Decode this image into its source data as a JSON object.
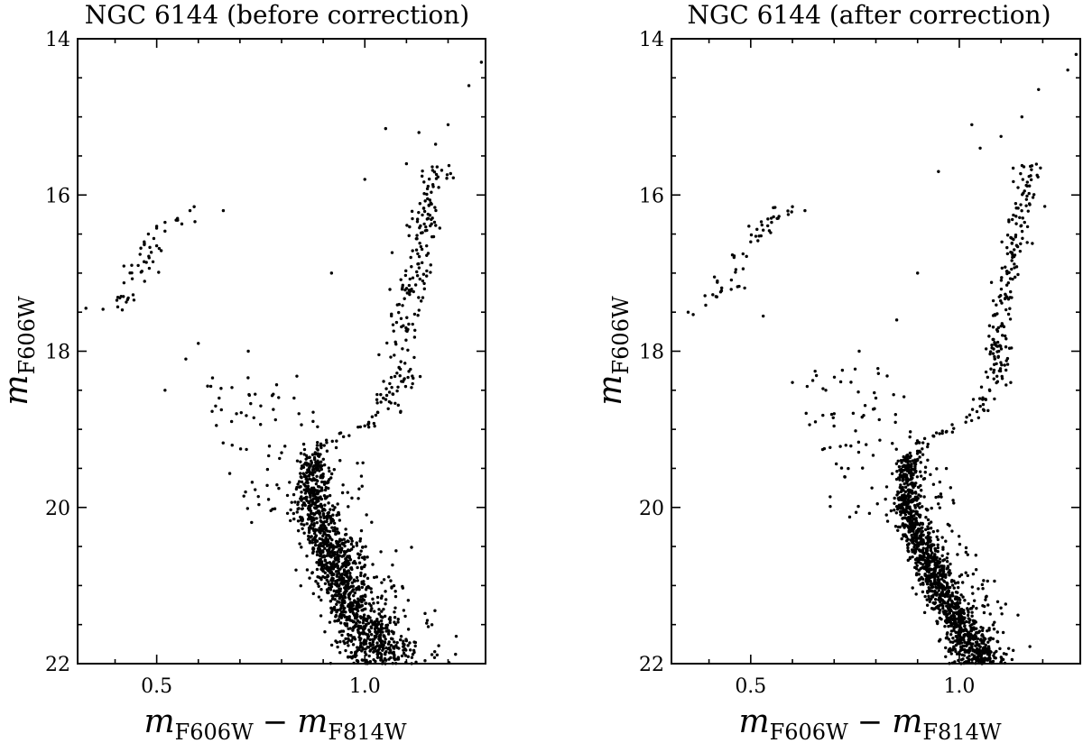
{
  "chart_data": [
    {
      "type": "scatter",
      "title": "NGC 6144 (before correction)",
      "xlabel": "m_F606W − m_F814W",
      "ylabel": "m_F606W",
      "xlabel_parts": {
        "m1": "m",
        "sub1": "F606W",
        "minus": "−",
        "m2": "m",
        "sub2": "F814W"
      },
      "ylabel_parts": {
        "m": "m",
        "sub": "F606W"
      },
      "xlim": [
        0.31,
        1.29
      ],
      "ylim": [
        22,
        14
      ],
      "y_inverted": true,
      "x_major_ticks": [
        0.5,
        1.0
      ],
      "x_tick_labels": [
        "0.5",
        "1.0"
      ],
      "x_minor_step": 0.1,
      "y_major_ticks": [
        14,
        16,
        18,
        20,
        22
      ],
      "y_tick_labels": [
        "14",
        "16",
        "18",
        "20",
        "22"
      ],
      "y_minor_step": 0.5,
      "grid": false,
      "spread": 1.0,
      "x": [
        0.33,
        0.42,
        0.44,
        0.47,
        0.48,
        0.5,
        0.52,
        0.55,
        0.58,
        0.59,
        0.66,
        0.52,
        0.57,
        0.6,
        0.63,
        0.65,
        0.68,
        0.72,
        0.75,
        0.78,
        0.8,
        0.83,
        0.92,
        1.0,
        1.05,
        1.1,
        1.13,
        1.17,
        1.2,
        1.25,
        1.28
      ],
      "y": [
        17.45,
        17.3,
        16.9,
        16.6,
        16.5,
        16.4,
        16.35,
        16.3,
        16.2,
        16.15,
        16.2,
        18.5,
        18.1,
        17.9,
        18.45,
        18.6,
        18.9,
        18.0,
        18.7,
        18.55,
        19.3,
        18.6,
        17.0,
        15.8,
        15.15,
        15.6,
        15.2,
        15.35,
        15.1,
        14.6,
        14.3
      ],
      "sequence_model": {
        "ms_color": [
          [
            20.0,
            0.875
          ],
          [
            21.0,
            0.95
          ],
          [
            22.0,
            1.05
          ]
        ],
        "sgb_color": [
          [
            19.2,
            0.9
          ],
          [
            18.8,
            1.05
          ],
          [
            18.3,
            1.09
          ],
          [
            17.5,
            1.1
          ],
          [
            16.5,
            1.14
          ],
          [
            15.7,
            1.17
          ]
        ],
        "hb_color": [
          [
            16.2,
            0.58
          ],
          [
            16.6,
            0.49
          ],
          [
            17.2,
            0.44
          ],
          [
            17.5,
            0.38
          ]
        ],
        "ms_count": 1350,
        "rgb_count": 240,
        "hb_count": 45,
        "field_count": 80
      }
    },
    {
      "type": "scatter",
      "title": "NGC 6144 (after correction)",
      "xlabel": "m_F606W − m_F814W",
      "ylabel": "m_F606W",
      "xlabel_parts": {
        "m1": "m",
        "sub1": "F606W",
        "minus": "−",
        "m2": "m",
        "sub2": "F814W"
      },
      "ylabel_parts": {
        "m": "m",
        "sub": "F606W"
      },
      "xlim": [
        0.31,
        1.29
      ],
      "ylim": [
        22,
        14
      ],
      "y_inverted": true,
      "x_major_ticks": [
        0.5,
        1.0
      ],
      "x_tick_labels": [
        "0.5",
        "1.0"
      ],
      "x_minor_step": 0.1,
      "y_major_ticks": [
        14,
        16,
        18,
        20,
        22
      ],
      "y_tick_labels": [
        "14",
        "16",
        "18",
        "20",
        "22"
      ],
      "y_minor_step": 0.5,
      "grid": false,
      "spread": 0.6,
      "x": [
        0.35,
        0.42,
        0.46,
        0.5,
        0.53,
        0.55,
        0.59,
        0.6,
        0.63,
        0.53,
        0.6,
        0.68,
        0.7,
        0.76,
        0.8,
        0.85,
        0.9,
        0.95,
        1.03,
        1.05,
        1.1,
        1.15,
        1.19,
        1.26,
        1.28
      ],
      "y": [
        17.5,
        17.1,
        16.8,
        16.6,
        16.45,
        16.35,
        16.25,
        16.15,
        16.2,
        17.55,
        18.4,
        18.5,
        18.8,
        18.0,
        18.6,
        17.6,
        17.0,
        15.7,
        15.1,
        15.4,
        15.25,
        15.0,
        14.65,
        14.4,
        14.2
      ],
      "sequence_model": {
        "ms_color": [
          [
            20.0,
            0.875
          ],
          [
            21.0,
            0.95
          ],
          [
            22.0,
            1.05
          ]
        ],
        "sgb_color": [
          [
            19.2,
            0.9
          ],
          [
            18.8,
            1.05
          ],
          [
            18.3,
            1.09
          ],
          [
            17.5,
            1.1
          ],
          [
            16.5,
            1.14
          ],
          [
            15.7,
            1.17
          ]
        ],
        "hb_color": [
          [
            16.2,
            0.58
          ],
          [
            16.6,
            0.49
          ],
          [
            17.2,
            0.44
          ],
          [
            17.5,
            0.38
          ]
        ],
        "ms_count": 1350,
        "rgb_count": 240,
        "hb_count": 45,
        "field_count": 80
      }
    }
  ]
}
